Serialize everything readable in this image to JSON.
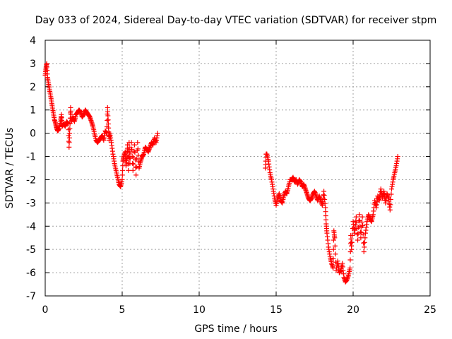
{
  "chart_data": {
    "type": "scatter",
    "title": "Day 033 of 2024, Sidereal Day-to-day VTEC variation (SDTVAR) for receiver stpm",
    "xlabel": "GPS time / hours",
    "ylabel": "SDTVAR / TECUs",
    "xlim": [
      0,
      25
    ],
    "ylim": [
      -7,
      4
    ],
    "xticks": [
      0,
      5,
      10,
      15,
      20,
      25
    ],
    "yticks": [
      -7,
      -6,
      -5,
      -4,
      -3,
      -2,
      -1,
      0,
      1,
      2,
      3,
      4
    ],
    "grid": true,
    "marker": "plus",
    "color": "#ff0000",
    "series": [
      {
        "points": [
          [
            0.0,
            2.5
          ],
          [
            0.05,
            2.8
          ],
          [
            0.1,
            3.0
          ],
          [
            0.15,
            2.4
          ],
          [
            0.22,
            2.1
          ],
          [
            0.3,
            1.8
          ],
          [
            0.38,
            1.5
          ],
          [
            0.45,
            1.2
          ],
          [
            0.52,
            0.9
          ],
          [
            0.6,
            0.6
          ],
          [
            0.68,
            0.4
          ],
          [
            0.75,
            0.2
          ],
          [
            0.82,
            0.1
          ],
          [
            0.9,
            0.2
          ],
          [
            1.0,
            0.5
          ],
          [
            1.05,
            0.8
          ],
          [
            1.1,
            0.3
          ],
          [
            1.2,
            0.4
          ],
          [
            1.3,
            0.3
          ],
          [
            1.4,
            0.5
          ],
          [
            1.5,
            0.4
          ],
          [
            1.55,
            -0.6
          ],
          [
            1.6,
            0.2
          ],
          [
            1.65,
            1.1
          ],
          [
            1.7,
            0.5
          ],
          [
            1.8,
            0.7
          ],
          [
            1.9,
            0.5
          ],
          [
            2.0,
            0.8
          ],
          [
            2.1,
            0.9
          ],
          [
            2.2,
            1.0
          ],
          [
            2.3,
            0.9
          ],
          [
            2.4,
            0.7
          ],
          [
            2.5,
            0.8
          ],
          [
            2.6,
            1.0
          ],
          [
            2.7,
            0.9
          ],
          [
            2.8,
            0.8
          ],
          [
            2.9,
            0.7
          ],
          [
            3.0,
            0.5
          ],
          [
            3.1,
            0.3
          ],
          [
            3.2,
            0.0
          ],
          [
            3.3,
            -0.3
          ],
          [
            3.4,
            -0.4
          ],
          [
            3.5,
            -0.3
          ],
          [
            3.6,
            -0.2
          ],
          [
            3.7,
            -0.1
          ],
          [
            3.8,
            -0.3
          ],
          [
            3.9,
            0.1
          ],
          [
            4.0,
            0.0
          ],
          [
            4.05,
            1.1
          ],
          [
            4.1,
            0.4
          ],
          [
            4.15,
            -0.3
          ],
          [
            4.2,
            0.0
          ],
          [
            4.3,
            -0.4
          ],
          [
            4.4,
            -0.9
          ],
          [
            4.5,
            -1.3
          ],
          [
            4.6,
            -1.6
          ],
          [
            4.7,
            -1.9
          ],
          [
            4.8,
            -2.2
          ],
          [
            4.9,
            -2.3
          ],
          [
            5.0,
            -2.0
          ],
          [
            5.05,
            -1.2
          ],
          [
            5.1,
            -1.0
          ],
          [
            5.2,
            -0.8
          ],
          [
            5.25,
            -1.4
          ],
          [
            5.3,
            -1.1
          ],
          [
            5.35,
            -0.5
          ],
          [
            5.4,
            -1.6
          ],
          [
            5.45,
            -0.4
          ],
          [
            5.5,
            -1.3
          ],
          [
            5.6,
            -0.4
          ],
          [
            5.7,
            -1.6
          ],
          [
            5.8,
            -0.5
          ],
          [
            5.9,
            -1.8
          ],
          [
            6.0,
            -0.4
          ],
          [
            6.1,
            -1.5
          ],
          [
            6.2,
            -1.2
          ],
          [
            6.3,
            -1.0
          ],
          [
            6.4,
            -0.9
          ],
          [
            6.5,
            -0.6
          ],
          [
            6.6,
            -0.7
          ],
          [
            6.7,
            -0.8
          ],
          [
            6.8,
            -0.6
          ],
          [
            6.9,
            -0.4
          ],
          [
            7.0,
            -0.5
          ],
          [
            7.1,
            -0.2
          ],
          [
            7.2,
            -0.4
          ],
          [
            7.3,
            0.0
          ]
        ]
      },
      {
        "points": [
          [
            14.3,
            -1.5
          ],
          [
            14.35,
            -0.9
          ],
          [
            14.4,
            -0.9
          ],
          [
            14.5,
            -1.2
          ],
          [
            14.6,
            -1.7
          ],
          [
            14.7,
            -2.0
          ],
          [
            14.8,
            -2.4
          ],
          [
            14.9,
            -2.8
          ],
          [
            15.0,
            -3.1
          ],
          [
            15.1,
            -2.8
          ],
          [
            15.2,
            -2.6
          ],
          [
            15.3,
            -2.9
          ],
          [
            15.4,
            -3.0
          ],
          [
            15.5,
            -2.7
          ],
          [
            15.6,
            -2.5
          ],
          [
            15.7,
            -2.6
          ],
          [
            15.8,
            -2.3
          ],
          [
            15.9,
            -2.0
          ],
          [
            16.0,
            -2.0
          ],
          [
            16.1,
            -1.9
          ],
          [
            16.2,
            -2.1
          ],
          [
            16.3,
            -2.0
          ],
          [
            16.4,
            -2.2
          ],
          [
            16.5,
            -2.0
          ],
          [
            16.6,
            -2.1
          ],
          [
            16.7,
            -2.3
          ],
          [
            16.8,
            -2.2
          ],
          [
            16.9,
            -2.4
          ],
          [
            17.0,
            -2.6
          ],
          [
            17.1,
            -2.8
          ],
          [
            17.2,
            -2.9
          ],
          [
            17.3,
            -2.8
          ],
          [
            17.4,
            -2.6
          ],
          [
            17.5,
            -2.5
          ],
          [
            17.6,
            -2.7
          ],
          [
            17.7,
            -2.9
          ],
          [
            17.8,
            -2.7
          ],
          [
            17.9,
            -2.9
          ],
          [
            18.0,
            -3.1
          ],
          [
            18.1,
            -2.5
          ],
          [
            18.2,
            -3.2
          ],
          [
            18.25,
            -3.9
          ],
          [
            18.3,
            -4.3
          ],
          [
            18.4,
            -4.9
          ],
          [
            18.5,
            -5.3
          ],
          [
            18.6,
            -5.6
          ],
          [
            18.7,
            -5.8
          ],
          [
            18.75,
            -4.2
          ],
          [
            18.8,
            -4.5
          ],
          [
            18.9,
            -5.9
          ],
          [
            19.0,
            -5.5
          ],
          [
            19.1,
            -6.0
          ],
          [
            19.2,
            -5.9
          ],
          [
            19.3,
            -5.6
          ],
          [
            19.4,
            -6.2
          ],
          [
            19.5,
            -6.4
          ],
          [
            19.6,
            -6.3
          ],
          [
            19.7,
            -6.1
          ],
          [
            19.8,
            -5.8
          ],
          [
            19.85,
            -4.4
          ],
          [
            19.9,
            -5.0
          ],
          [
            20.0,
            -3.8
          ],
          [
            20.1,
            -4.3
          ],
          [
            20.2,
            -3.6
          ],
          [
            20.3,
            -4.6
          ],
          [
            20.4,
            -3.5
          ],
          [
            20.5,
            -4.5
          ],
          [
            20.6,
            -3.6
          ],
          [
            20.7,
            -5.1
          ],
          [
            20.8,
            -4.3
          ],
          [
            20.9,
            -3.8
          ],
          [
            21.0,
            -3.5
          ],
          [
            21.1,
            -3.7
          ],
          [
            21.2,
            -3.8
          ],
          [
            21.3,
            -3.5
          ],
          [
            21.4,
            -2.9
          ],
          [
            21.5,
            -3.2
          ],
          [
            21.6,
            -2.7
          ],
          [
            21.7,
            -2.9
          ],
          [
            21.8,
            -2.4
          ],
          [
            21.9,
            -2.8
          ],
          [
            22.0,
            -2.5
          ],
          [
            22.1,
            -3.0
          ],
          [
            22.2,
            -2.6
          ],
          [
            22.3,
            -2.8
          ],
          [
            22.4,
            -3.3
          ],
          [
            22.5,
            -2.4
          ],
          [
            22.6,
            -2.0
          ],
          [
            22.7,
            -1.7
          ],
          [
            22.8,
            -1.4
          ],
          [
            22.9,
            -1.0
          ]
        ]
      }
    ]
  }
}
